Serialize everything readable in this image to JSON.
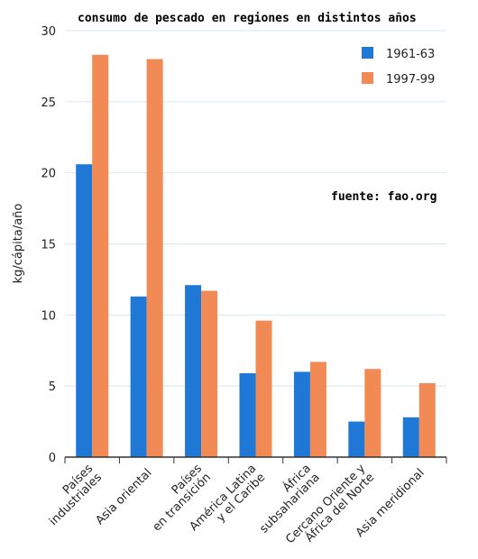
{
  "chart_data": {
    "type": "bar",
    "title": "consumo de pescado en regiones en distintos años",
    "annotation": "fuente: fao.org",
    "ylabel": "kg/cápita/año",
    "xlabel": "",
    "ylim": [
      0,
      30
    ],
    "yticks": [
      0,
      5,
      10,
      15,
      20,
      25,
      30
    ],
    "grid": true,
    "legend_position": "top-right",
    "categories": [
      [
        "Países",
        "industriales"
      ],
      [
        "Asia oriental"
      ],
      [
        "Países",
        "en transición"
      ],
      [
        "América Latina",
        "y el Caribe"
      ],
      [
        "África",
        "subsahariana"
      ],
      [
        "Cercano Oriente y",
        "África del Norte"
      ],
      [
        "Asia meridional"
      ]
    ],
    "series": [
      {
        "name": "1961-63",
        "color": "#1f77d6",
        "values": [
          20.6,
          11.3,
          12.1,
          5.9,
          6.0,
          2.5,
          2.8
        ]
      },
      {
        "name": "1997-99",
        "color": "#f28a55",
        "values": [
          28.3,
          28.0,
          11.7,
          9.6,
          6.7,
          6.2,
          5.2
        ]
      }
    ]
  }
}
